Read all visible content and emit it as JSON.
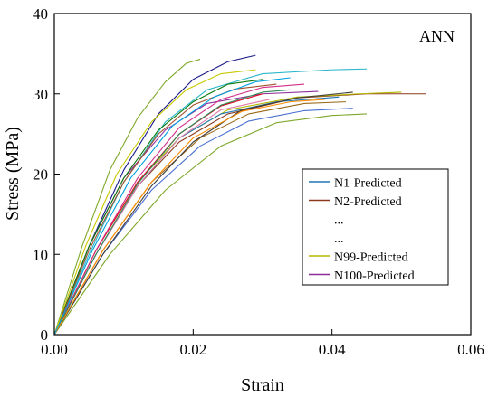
{
  "chart_data": {
    "type": "line",
    "title": "",
    "annotation": "ANN",
    "xlabel": "Strain",
    "ylabel": "Stress (MPa)",
    "xlim": [
      0,
      0.06
    ],
    "ylim": [
      0,
      40
    ],
    "x_ticks": [
      0.0,
      0.02,
      0.04,
      0.06
    ],
    "x_tick_labels": [
      "0.00",
      "0.02",
      "0.04",
      "0.06"
    ],
    "y_ticks": [
      0,
      10,
      20,
      30,
      40
    ],
    "y_tick_labels": [
      "0",
      "10",
      "20",
      "30",
      "40"
    ],
    "grid": false,
    "legend_position": "center-right",
    "legend": [
      {
        "label": "N1-Predicted",
        "color": "#1f77b4",
        "line": true
      },
      {
        "label": "N2-Predicted",
        "color": "#8c3a1e",
        "line": true
      },
      {
        "label": "...",
        "color": "",
        "line": false
      },
      {
        "label": "...",
        "color": "",
        "line": false
      },
      {
        "label": "N99-Predicted",
        "color": "#b5b800",
        "line": true
      },
      {
        "label": "N100-Predicted",
        "color": "#8e2d9a",
        "line": true
      }
    ],
    "series_note": "100 predicted stress-strain curves; representative envelope curves given as [strain, stress] points",
    "series": [
      {
        "color": "#7fa82a",
        "points": [
          [
            0,
            0
          ],
          [
            0.004,
            11
          ],
          [
            0.008,
            20.5
          ],
          [
            0.012,
            27
          ],
          [
            0.016,
            31.5
          ],
          [
            0.019,
            33.8
          ],
          [
            0.021,
            34.3
          ]
        ]
      },
      {
        "color": "#1a1a8a",
        "points": [
          [
            0,
            0
          ],
          [
            0.005,
            11
          ],
          [
            0.01,
            20.5
          ],
          [
            0.015,
            27.5
          ],
          [
            0.02,
            31.8
          ],
          [
            0.025,
            34
          ],
          [
            0.029,
            34.8
          ]
        ]
      },
      {
        "color": "#2bb5c9",
        "points": [
          [
            0,
            0
          ],
          [
            0.005,
            10
          ],
          [
            0.01,
            19
          ],
          [
            0.016,
            26.5
          ],
          [
            0.022,
            30.5
          ],
          [
            0.03,
            32.5
          ],
          [
            0.04,
            33
          ],
          [
            0.045,
            33.1
          ]
        ]
      },
      {
        "color": "#8c3a1e",
        "points": [
          [
            0,
            0
          ],
          [
            0.006,
            10
          ],
          [
            0.012,
            18.5
          ],
          [
            0.018,
            24
          ],
          [
            0.025,
            27.5
          ],
          [
            0.035,
            29.5
          ],
          [
            0.045,
            30
          ],
          [
            0.0535,
            30
          ]
        ]
      },
      {
        "color": "#b5b800",
        "points": [
          [
            0,
            0
          ],
          [
            0.006,
            10.5
          ],
          [
            0.012,
            19
          ],
          [
            0.018,
            24.5
          ],
          [
            0.025,
            28
          ],
          [
            0.035,
            29.6
          ],
          [
            0.044,
            30
          ],
          [
            0.05,
            30.2
          ]
        ]
      },
      {
        "color": "#8e2d9a",
        "points": [
          [
            0,
            0
          ],
          [
            0.005,
            11
          ],
          [
            0.01,
            19.5
          ],
          [
            0.016,
            25.5
          ],
          [
            0.022,
            28.8
          ],
          [
            0.03,
            30
          ],
          [
            0.038,
            30.3
          ]
        ]
      },
      {
        "color": "#1f77b4",
        "points": [
          [
            0,
            0
          ],
          [
            0.006,
            10
          ],
          [
            0.012,
            18.5
          ],
          [
            0.018,
            24.5
          ],
          [
            0.024,
            27.5
          ],
          [
            0.032,
            29
          ],
          [
            0.041,
            29.6
          ]
        ]
      },
      {
        "color": "#e6001e",
        "points": [
          [
            0,
            0
          ],
          [
            0.006,
            10.5
          ],
          [
            0.012,
            19
          ],
          [
            0.018,
            25
          ],
          [
            0.024,
            28.5
          ],
          [
            0.03,
            30
          ]
        ]
      },
      {
        "color": "#0a7a0a",
        "points": [
          [
            0,
            0
          ],
          [
            0.005,
            11
          ],
          [
            0.01,
            19.5
          ],
          [
            0.015,
            25.5
          ],
          [
            0.02,
            29
          ],
          [
            0.025,
            31.2
          ],
          [
            0.03,
            31.8
          ]
        ]
      },
      {
        "color": "#e07aa8",
        "points": [
          [
            0,
            0
          ],
          [
            0.006,
            10
          ],
          [
            0.012,
            18.5
          ],
          [
            0.018,
            24.5
          ],
          [
            0.024,
            28
          ],
          [
            0.031,
            29.3
          ]
        ]
      },
      {
        "color": "#9a6a1a",
        "points": [
          [
            0,
            0
          ],
          [
            0.007,
            10.5
          ],
          [
            0.014,
            19
          ],
          [
            0.021,
            24.5
          ],
          [
            0.028,
            27.5
          ],
          [
            0.036,
            28.8
          ],
          [
            0.042,
            29
          ]
        ]
      },
      {
        "color": "#4a6fd0",
        "points": [
          [
            0,
            0
          ],
          [
            0.007,
            10
          ],
          [
            0.014,
            18
          ],
          [
            0.021,
            23.5
          ],
          [
            0.028,
            26.6
          ],
          [
            0.036,
            27.9
          ],
          [
            0.043,
            28.2
          ]
        ]
      },
      {
        "color": "#7fa82a",
        "points": [
          [
            0,
            0
          ],
          [
            0.008,
            10
          ],
          [
            0.016,
            18
          ],
          [
            0.024,
            23.5
          ],
          [
            0.032,
            26.4
          ],
          [
            0.04,
            27.3
          ],
          [
            0.045,
            27.5
          ]
        ]
      },
      {
        "color": "#3d3d3d",
        "points": [
          [
            0,
            0
          ],
          [
            0.007,
            10
          ],
          [
            0.014,
            18.5
          ],
          [
            0.02,
            24
          ],
          [
            0.027,
            28
          ],
          [
            0.035,
            29.5
          ],
          [
            0.043,
            30.2
          ]
        ]
      },
      {
        "color": "#a0522d",
        "points": [
          [
            0,
            0
          ],
          [
            0.005,
            10.5
          ],
          [
            0.01,
            19
          ],
          [
            0.015,
            25
          ],
          [
            0.02,
            28.6
          ],
          [
            0.026,
            30.6
          ],
          [
            0.032,
            31.2
          ]
        ]
      },
      {
        "color": "#c8c800",
        "points": [
          [
            0,
            0
          ],
          [
            0.0045,
            11
          ],
          [
            0.009,
            20
          ],
          [
            0.014,
            26.5
          ],
          [
            0.019,
            30.5
          ],
          [
            0.024,
            32.5
          ],
          [
            0.029,
            33
          ]
        ]
      },
      {
        "color": "#d12f8a",
        "points": [
          [
            0,
            0
          ],
          [
            0.006,
            10.5
          ],
          [
            0.012,
            19.5
          ],
          [
            0.018,
            25.8
          ],
          [
            0.024,
            29.3
          ],
          [
            0.03,
            30.8
          ],
          [
            0.036,
            31.2
          ]
        ]
      },
      {
        "color": "#2e8b57",
        "points": [
          [
            0,
            0
          ],
          [
            0.006,
            10
          ],
          [
            0.012,
            18.8
          ],
          [
            0.018,
            25
          ],
          [
            0.024,
            28.6
          ],
          [
            0.03,
            30.2
          ],
          [
            0.034,
            30.5
          ]
        ]
      },
      {
        "color": "#ff8c00",
        "points": [
          [
            0,
            0
          ],
          [
            0.007,
            10.5
          ],
          [
            0.014,
            19
          ],
          [
            0.02,
            24.5
          ],
          [
            0.027,
            27.8
          ],
          [
            0.034,
            29
          ],
          [
            0.039,
            29.3
          ]
        ]
      },
      {
        "color": "#00a0e0",
        "points": [
          [
            0,
            0
          ],
          [
            0.0055,
            10.5
          ],
          [
            0.011,
            19.5
          ],
          [
            0.017,
            26
          ],
          [
            0.023,
            29.6
          ],
          [
            0.029,
            31.5
          ],
          [
            0.034,
            32
          ]
        ]
      }
    ]
  }
}
